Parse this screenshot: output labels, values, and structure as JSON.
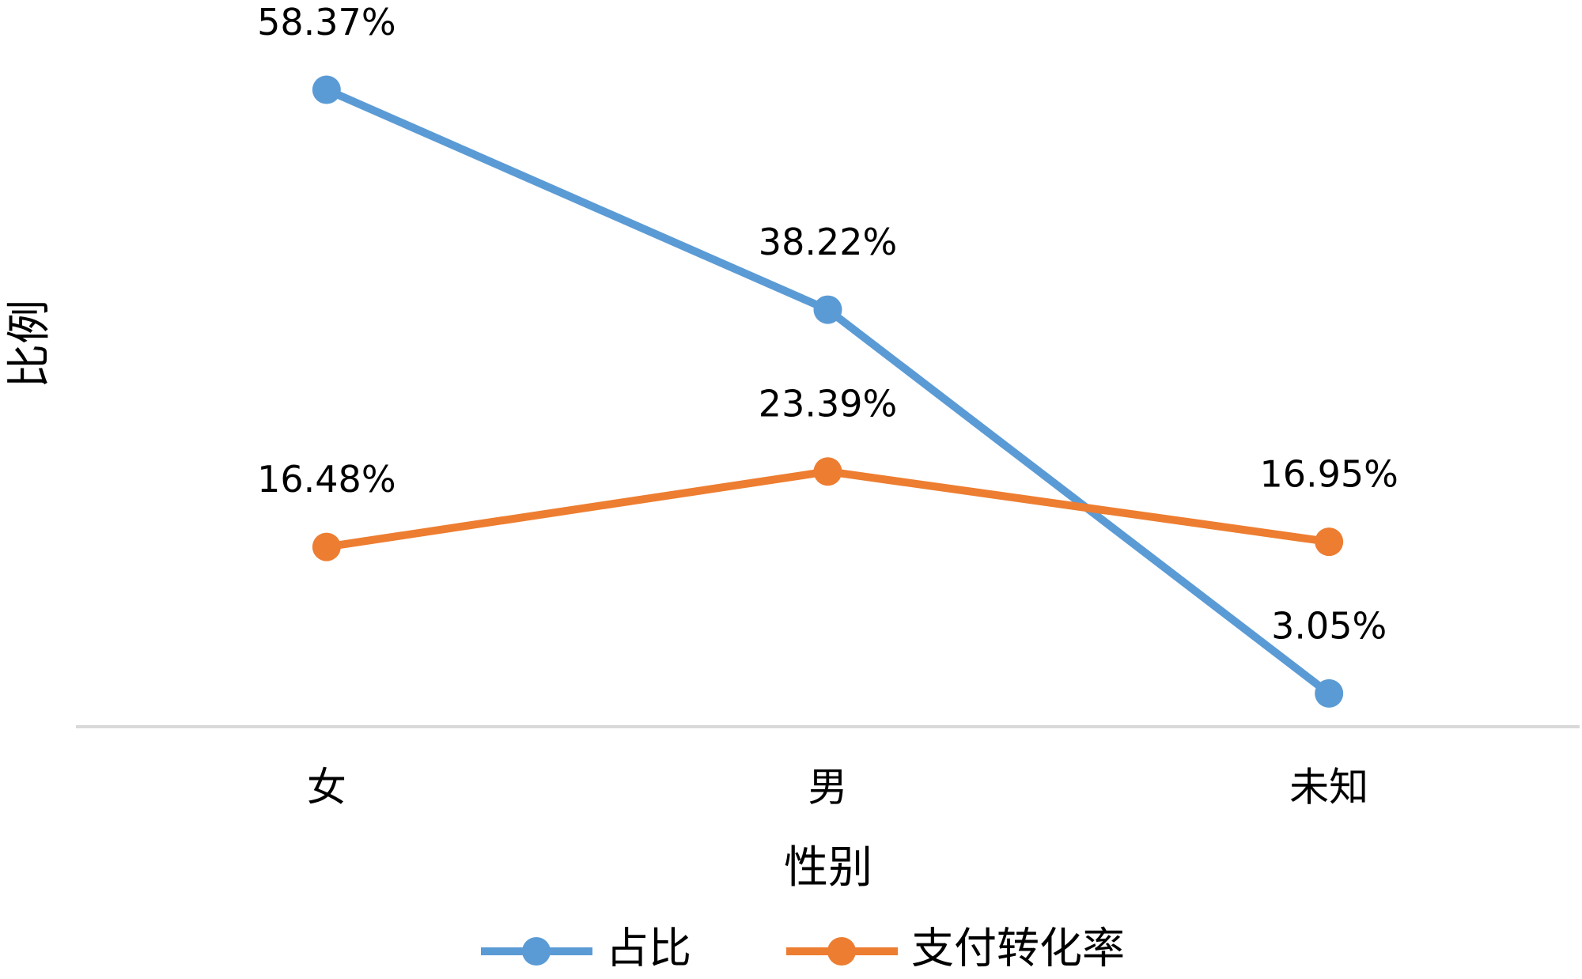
{
  "chart_data": {
    "type": "line",
    "x_label": "性别",
    "y_label": "比例",
    "categories": [
      "女",
      "男",
      "未知"
    ],
    "series": [
      {
        "name": "占比",
        "color": "#5b9bd5",
        "values": [
          58.37,
          38.22,
          3.05
        ],
        "value_labels": [
          "58.37%",
          "38.22%",
          "3.05%"
        ]
      },
      {
        "name": "支付转化率",
        "color": "#ed7d31",
        "values": [
          16.48,
          23.39,
          16.95
        ],
        "value_labels": [
          "16.48%",
          "23.39%",
          "16.95%"
        ]
      }
    ],
    "ylim": [
      0,
      60
    ],
    "grid": false,
    "legend": "bottom"
  }
}
